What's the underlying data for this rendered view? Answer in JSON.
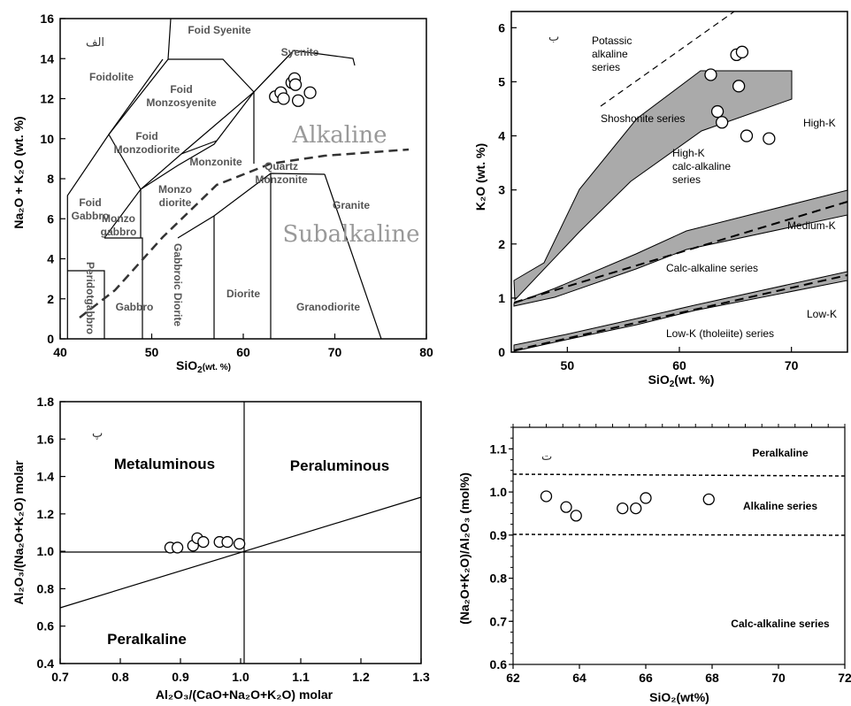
{
  "chart_data": [
    {
      "type": "scatter",
      "panel_label": "الف",
      "xlabel": "SiO",
      "xlabel_sub": "2",
      "xlabel_suffix": "(wt. %)",
      "ylabel": "Na₂O + K₂O (wt. %)",
      "xlim": [
        40,
        80
      ],
      "ylim": [
        0,
        16
      ],
      "x_ticks": [
        "40",
        "50",
        "60",
        "70",
        "80"
      ],
      "y_ticks": [
        "0",
        "2",
        "4",
        "6",
        "8",
        "10",
        "12",
        "14",
        "16"
      ],
      "field_labels": [
        "Foid Syenite",
        "Syenite",
        "Foidolite",
        "Foid Monzosyenite",
        "Foid Monzodiorite",
        "Monzonite",
        "Quartz Monzonite",
        "Foid Gabbro",
        "Monzo diorite",
        "Monzo gabbro",
        "Peridotgabbro",
        "Gabbro",
        "Gabbroic Diorite",
        "Diorite",
        "Granodiorite",
        "Granite"
      ],
      "series_labels": [
        "Alkaline",
        "Subalkaline"
      ],
      "points": [
        {
          "x": 63.5,
          "y": 12.1
        },
        {
          "x": 64.1,
          "y": 12.3
        },
        {
          "x": 64.4,
          "y": 12.0
        },
        {
          "x": 65.3,
          "y": 12.8
        },
        {
          "x": 65.6,
          "y": 13.0
        },
        {
          "x": 65.7,
          "y": 12.7
        },
        {
          "x": 66.0,
          "y": 11.9
        },
        {
          "x": 67.3,
          "y": 12.3
        }
      ]
    },
    {
      "type": "scatter",
      "panel_label": "ب",
      "xlabel": "SiO",
      "xlabel_sub": "2",
      "xlabel_suffix": "(wt. %)",
      "ylabel": "K₂O (wt. %)",
      "xlim": [
        45,
        75
      ],
      "ylim": [
        0,
        6.3
      ],
      "x_ticks": [
        "50",
        "60",
        "70"
      ],
      "y_ticks": [
        "0",
        "1",
        "2",
        "3",
        "4",
        "5",
        "6"
      ],
      "series_labels": [
        "Potassic alkaline series",
        "Shoshonite series",
        "High-K",
        "High-K calc-alkaline series",
        "Medium-K",
        "Calc-alkaline series",
        "Low-K",
        "Low-K (tholeiite) series"
      ],
      "points": [
        {
          "x": 62.8,
          "y": 5.13
        },
        {
          "x": 65.1,
          "y": 5.5
        },
        {
          "x": 65.6,
          "y": 5.55
        },
        {
          "x": 65.3,
          "y": 4.92
        },
        {
          "x": 63.4,
          "y": 4.45
        },
        {
          "x": 63.8,
          "y": 4.25
        },
        {
          "x": 66.0,
          "y": 4.0
        },
        {
          "x": 68.0,
          "y": 3.95
        }
      ]
    },
    {
      "type": "scatter",
      "panel_label": "پ",
      "xlabel": "Al₂O₃/(CaO+Na₂O+K₂O) molar",
      "ylabel": "Al₂O₃/(Na₂O+K₂O) molar",
      "xlim": [
        0.7,
        1.3
      ],
      "ylim": [
        0.4,
        1.8
      ],
      "x_ticks": [
        "0.7",
        "0.8",
        "0.9",
        "1.0",
        "1.1",
        "1.2",
        "1.3"
      ],
      "y_ticks": [
        "0.4",
        "0.6",
        "0.8",
        "1.0",
        "1.2",
        "1.4",
        "1.6",
        "1.8"
      ],
      "field_labels": [
        "Metaluminous",
        "Peraluminous",
        "Peralkaline"
      ],
      "points": [
        {
          "x": 0.883,
          "y": 1.02
        },
        {
          "x": 0.895,
          "y": 1.02
        },
        {
          "x": 0.921,
          "y": 1.03
        },
        {
          "x": 0.928,
          "y": 1.07
        },
        {
          "x": 0.938,
          "y": 1.05
        },
        {
          "x": 0.965,
          "y": 1.05
        },
        {
          "x": 0.978,
          "y": 1.05
        },
        {
          "x": 0.998,
          "y": 1.04
        }
      ]
    },
    {
      "type": "scatter",
      "panel_label": "ت",
      "xlabel": "SiO₂(wt%)",
      "ylabel": "(Na₂O+K₂O)/Al₂O₃ (mol%)",
      "xlim": [
        62,
        72
      ],
      "ylim": [
        0.6,
        1.15
      ],
      "x_ticks": [
        "62",
        "64",
        "66",
        "68",
        "70",
        "72"
      ],
      "y_ticks": [
        "0.6",
        "0.7",
        "0.8",
        "0.9",
        "1.0",
        "1.1"
      ],
      "field_labels": [
        "Peralkaline",
        "Alkaline series",
        "Calc-alkaline series"
      ],
      "points": [
        {
          "x": 63.0,
          "y": 0.99
        },
        {
          "x": 63.6,
          "y": 0.965
        },
        {
          "x": 63.9,
          "y": 0.945
        },
        {
          "x": 65.3,
          "y": 0.962
        },
        {
          "x": 65.7,
          "y": 0.962
        },
        {
          "x": 66.0,
          "y": 0.986
        },
        {
          "x": 67.9,
          "y": 0.983
        }
      ]
    }
  ]
}
